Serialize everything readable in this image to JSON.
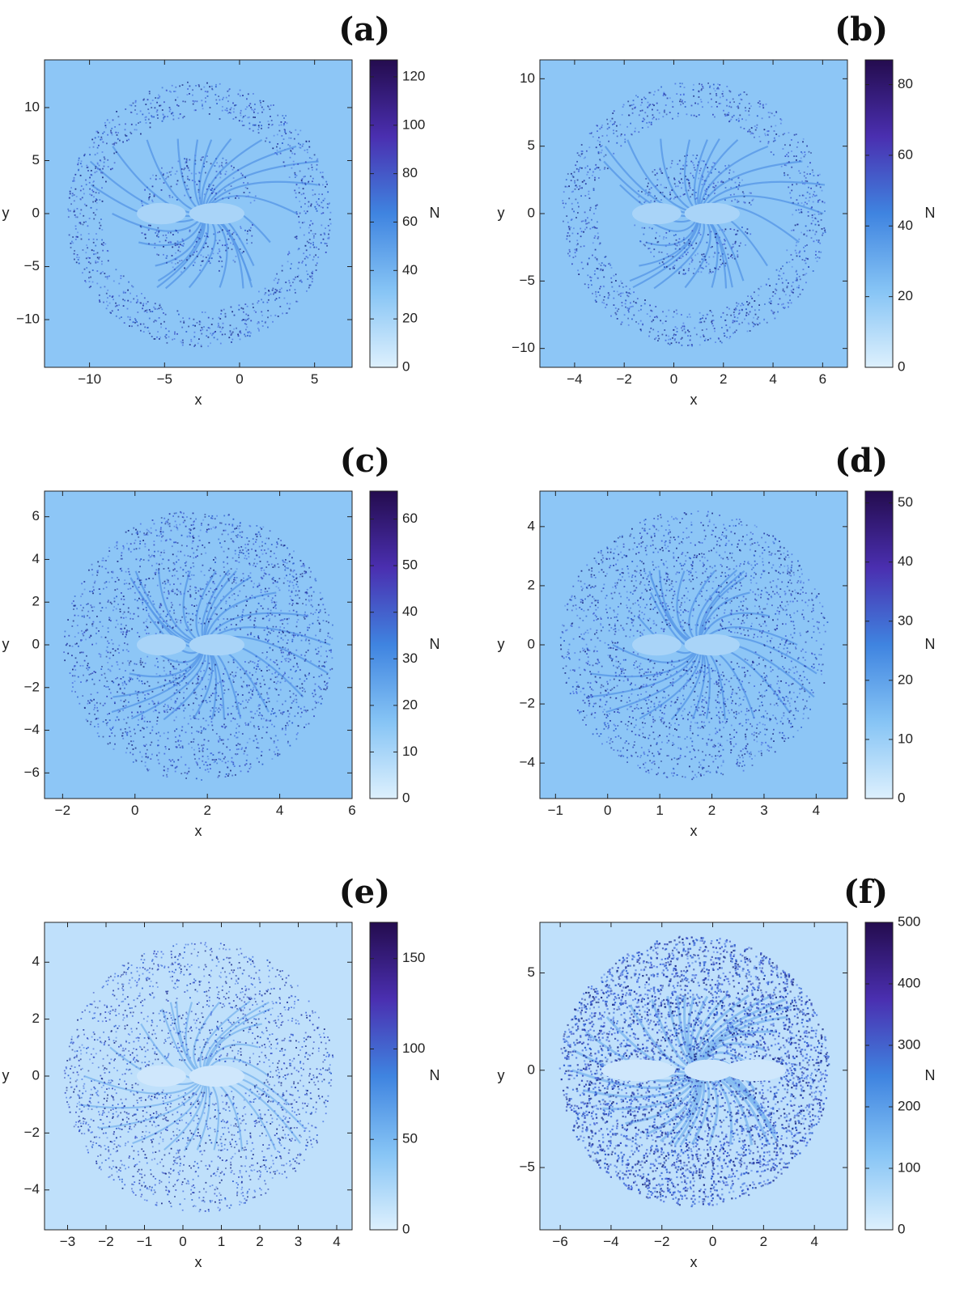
{
  "chart_data": [
    {
      "panel": "(a)",
      "type": "heatmap",
      "xlabel": "x",
      "ylabel": "y",
      "xlim": [
        -13,
        7.5
      ],
      "ylim": [
        -14.5,
        14.5
      ],
      "xticks": [
        -10,
        -5,
        0,
        5
      ],
      "yticks": [
        -10,
        -5,
        0,
        5,
        10
      ],
      "colorbar": {
        "label": "N",
        "range": [
          0,
          127
        ],
        "ticks": [
          0,
          20,
          40,
          60,
          80,
          100,
          120
        ]
      },
      "pattern": "crescent"
    },
    {
      "panel": "(b)",
      "type": "heatmap",
      "xlabel": "x",
      "ylabel": "y",
      "xlim": [
        -5.4,
        7.0
      ],
      "ylim": [
        -11.4,
        11.4
      ],
      "xticks": [
        -4,
        -2,
        0,
        2,
        4,
        6
      ],
      "yticks": [
        -10,
        -5,
        0,
        5,
        10
      ],
      "colorbar": {
        "label": "N",
        "range": [
          0,
          87
        ],
        "ticks": [
          0,
          20,
          40,
          60,
          80
        ]
      },
      "pattern": "crescent-tilted"
    },
    {
      "panel": "(c)",
      "type": "heatmap",
      "xlabel": "x",
      "ylabel": "y",
      "xlim": [
        -2.5,
        6.0
      ],
      "ylim": [
        -7.2,
        7.2
      ],
      "xticks": [
        -2,
        0,
        2,
        4,
        6
      ],
      "yticks": [
        -6,
        -4,
        -2,
        0,
        2,
        4,
        6
      ],
      "colorbar": {
        "label": "N",
        "range": [
          0,
          66
        ],
        "ticks": [
          0,
          10,
          20,
          30,
          40,
          50,
          60
        ]
      },
      "pattern": "flower"
    },
    {
      "panel": "(d)",
      "type": "heatmap",
      "xlabel": "x",
      "ylabel": "y",
      "xlim": [
        -1.3,
        4.6
      ],
      "ylim": [
        -5.2,
        5.2
      ],
      "xticks": [
        -1,
        0,
        1,
        2,
        3,
        4
      ],
      "yticks": [
        -4,
        -2,
        0,
        2,
        4
      ],
      "colorbar": {
        "label": "N",
        "range": [
          0,
          52
        ],
        "ticks": [
          0,
          10,
          20,
          30,
          40,
          50
        ]
      },
      "pattern": "flower"
    },
    {
      "panel": "(e)",
      "type": "heatmap",
      "xlabel": "x",
      "ylabel": "y",
      "xlim": [
        -3.6,
        4.4
      ],
      "ylim": [
        -5.4,
        5.4
      ],
      "xticks": [
        -3,
        -2,
        -1,
        0,
        1,
        2,
        3,
        4
      ],
      "yticks": [
        -4,
        -2,
        0,
        2,
        4
      ],
      "colorbar": {
        "label": "N",
        "range": [
          0,
          170
        ],
        "ticks": [
          0,
          50,
          100,
          150
        ]
      },
      "pattern": "swirl"
    },
    {
      "panel": "(f)",
      "type": "heatmap",
      "xlabel": "x",
      "ylabel": "y",
      "xlim": [
        -6.8,
        5.3
      ],
      "ylim": [
        -8.2,
        7.6
      ],
      "xticks": [
        -6,
        -4,
        -2,
        0,
        2,
        4
      ],
      "yticks": [
        -5,
        0,
        5
      ],
      "colorbar": {
        "label": "N",
        "range": [
          0,
          500
        ],
        "ticks": [
          0,
          100,
          200,
          300,
          400,
          500
        ]
      },
      "pattern": "dense"
    }
  ],
  "colors": {
    "scale_low": "#d7ecfc",
    "scale_mid": "#3f84e0",
    "scale_high": "#250e50"
  }
}
